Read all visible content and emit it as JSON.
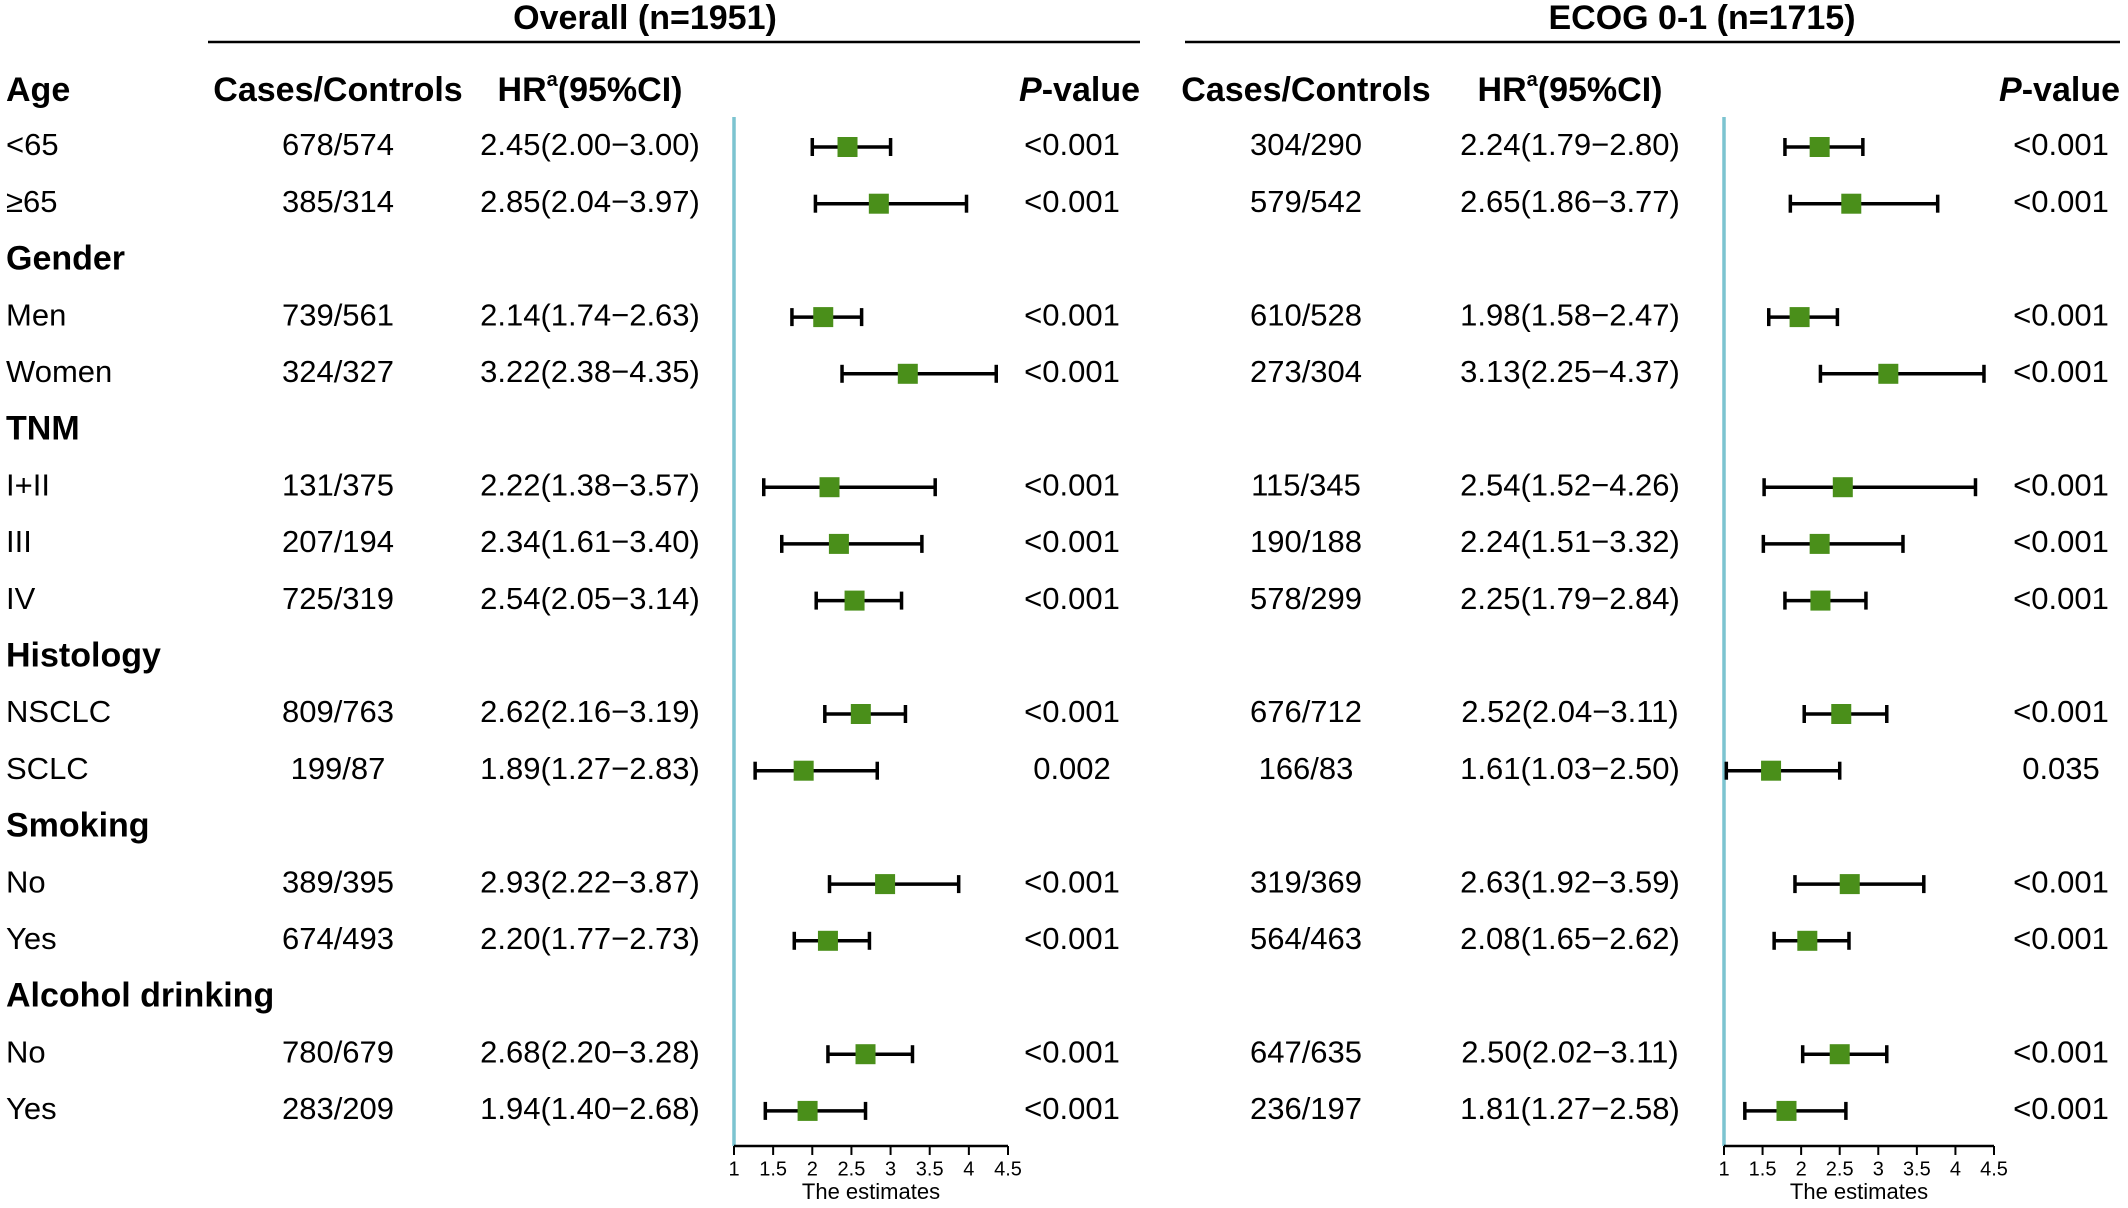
{
  "chart_data": {
    "type": "forest",
    "panels": [
      {
        "id": "overall",
        "title": "Overall (n=1951)"
      },
      {
        "id": "ecog",
        "title": "ECOG 0-1 (n=1715)"
      }
    ],
    "columns": {
      "group": "Age",
      "cases_controls": "Cases/Controls",
      "hr_prefix": "HR",
      "hr_sup": "a",
      "hr_suffix": "(95%CI)",
      "p_italic": "P",
      "p_suffix": "-value"
    },
    "x_axis": {
      "label": "The estimates",
      "min": 1,
      "max": 4.5,
      "ticks": [
        1,
        1.5,
        2,
        2.5,
        3,
        3.5,
        4,
        4.5
      ],
      "tick_labels": [
        "1",
        "1.5",
        "2",
        "2.5",
        "3",
        "3.5",
        "4",
        "4.5"
      ],
      "reference_line": 1
    },
    "rows": [
      {
        "kind": "data",
        "label": "<65",
        "overall": {
          "cc": "678/574",
          "hr": 2.45,
          "lo": 2.0,
          "hi": 3.0,
          "hr_text": "2.45(2.00−3.00)",
          "p": "<0.001"
        },
        "ecog": {
          "cc": "304/290",
          "hr": 2.24,
          "lo": 1.79,
          "hi": 2.8,
          "hr_text": "2.24(1.79−2.80)",
          "p": "<0.001"
        }
      },
      {
        "kind": "data",
        "label": "≥65",
        "overall": {
          "cc": "385/314",
          "hr": 2.85,
          "lo": 2.04,
          "hi": 3.97,
          "hr_text": "2.85(2.04−3.97)",
          "p": "<0.001"
        },
        "ecog": {
          "cc": "579/542",
          "hr": 2.65,
          "lo": 1.86,
          "hi": 3.77,
          "hr_text": "2.65(1.86−3.77)",
          "p": "<0.001"
        }
      },
      {
        "kind": "section",
        "label": "Gender"
      },
      {
        "kind": "data",
        "label": "Men",
        "overall": {
          "cc": "739/561",
          "hr": 2.14,
          "lo": 1.74,
          "hi": 2.63,
          "hr_text": "2.14(1.74−2.63)",
          "p": "<0.001"
        },
        "ecog": {
          "cc": "610/528",
          "hr": 1.98,
          "lo": 1.58,
          "hi": 2.47,
          "hr_text": "1.98(1.58−2.47)",
          "p": "<0.001"
        }
      },
      {
        "kind": "data",
        "label": "Women",
        "overall": {
          "cc": "324/327",
          "hr": 3.22,
          "lo": 2.38,
          "hi": 4.35,
          "hr_text": "3.22(2.38−4.35)",
          "p": "<0.001"
        },
        "ecog": {
          "cc": "273/304",
          "hr": 3.13,
          "lo": 2.25,
          "hi": 4.37,
          "hr_text": "3.13(2.25−4.37)",
          "p": "<0.001"
        }
      },
      {
        "kind": "section",
        "label": "TNM"
      },
      {
        "kind": "data",
        "label": "I+II",
        "overall": {
          "cc": "131/375",
          "hr": 2.22,
          "lo": 1.38,
          "hi": 3.57,
          "hr_text": "2.22(1.38−3.57)",
          "p": "<0.001"
        },
        "ecog": {
          "cc": "115/345",
          "hr": 2.54,
          "lo": 1.52,
          "hi": 4.26,
          "hr_text": "2.54(1.52−4.26)",
          "p": "<0.001"
        }
      },
      {
        "kind": "data",
        "label": "III",
        "overall": {
          "cc": "207/194",
          "hr": 2.34,
          "lo": 1.61,
          "hi": 3.4,
          "hr_text": "2.34(1.61−3.40)",
          "p": "<0.001"
        },
        "ecog": {
          "cc": "190/188",
          "hr": 2.24,
          "lo": 1.51,
          "hi": 3.32,
          "hr_text": "2.24(1.51−3.32)",
          "p": "<0.001"
        }
      },
      {
        "kind": "data",
        "label": "IV",
        "overall": {
          "cc": "725/319",
          "hr": 2.54,
          "lo": 2.05,
          "hi": 3.14,
          "hr_text": "2.54(2.05−3.14)",
          "p": "<0.001"
        },
        "ecog": {
          "cc": "578/299",
          "hr": 2.25,
          "lo": 1.79,
          "hi": 2.84,
          "hr_text": "2.25(1.79−2.84)",
          "p": "<0.001"
        }
      },
      {
        "kind": "section",
        "label": "Histology"
      },
      {
        "kind": "data",
        "label": "NSCLC",
        "overall": {
          "cc": "809/763",
          "hr": 2.62,
          "lo": 2.16,
          "hi": 3.19,
          "hr_text": "2.62(2.16−3.19)",
          "p": "<0.001"
        },
        "ecog": {
          "cc": "676/712",
          "hr": 2.52,
          "lo": 2.04,
          "hi": 3.11,
          "hr_text": "2.52(2.04−3.11)",
          "p": "<0.001"
        }
      },
      {
        "kind": "data",
        "label": "SCLC",
        "overall": {
          "cc": "199/87",
          "hr": 1.89,
          "lo": 1.27,
          "hi": 2.83,
          "hr_text": "1.89(1.27−2.83)",
          "p": "0.002"
        },
        "ecog": {
          "cc": "166/83",
          "hr": 1.61,
          "lo": 1.03,
          "hi": 2.5,
          "hr_text": "1.61(1.03−2.50)",
          "p": "0.035"
        }
      },
      {
        "kind": "section",
        "label": "Smoking"
      },
      {
        "kind": "data",
        "label": "No",
        "overall": {
          "cc": "389/395",
          "hr": 2.93,
          "lo": 2.22,
          "hi": 3.87,
          "hr_text": "2.93(2.22−3.87)",
          "p": "<0.001"
        },
        "ecog": {
          "cc": "319/369",
          "hr": 2.63,
          "lo": 1.92,
          "hi": 3.59,
          "hr_text": "2.63(1.92−3.59)",
          "p": "<0.001"
        }
      },
      {
        "kind": "data",
        "label": "Yes",
        "overall": {
          "cc": "674/493",
          "hr": 2.2,
          "lo": 1.77,
          "hi": 2.73,
          "hr_text": "2.20(1.77−2.73)",
          "p": "<0.001"
        },
        "ecog": {
          "cc": "564/463",
          "hr": 2.08,
          "lo": 1.65,
          "hi": 2.62,
          "hr_text": "2.08(1.65−2.62)",
          "p": "<0.001"
        }
      },
      {
        "kind": "section",
        "label": "Alcohol drinking"
      },
      {
        "kind": "data",
        "label": "No",
        "overall": {
          "cc": "780/679",
          "hr": 2.68,
          "lo": 2.2,
          "hi": 3.28,
          "hr_text": "2.68(2.20−3.28)",
          "p": "<0.001"
        },
        "ecog": {
          "cc": "647/635",
          "hr": 2.5,
          "lo": 2.02,
          "hi": 3.11,
          "hr_text": "2.50(2.02−3.11)",
          "p": "<0.001"
        }
      },
      {
        "kind": "data",
        "label": "Yes",
        "overall": {
          "cc": "283/209",
          "hr": 1.94,
          "lo": 1.4,
          "hi": 2.68,
          "hr_text": "1.94(1.40−2.68)",
          "p": "<0.001"
        },
        "ecog": {
          "cc": "236/197",
          "hr": 1.81,
          "lo": 1.27,
          "hi": 2.58,
          "hr_text": "1.81(1.27−2.58)",
          "p": "<0.001"
        }
      }
    ],
    "colors": {
      "marker": "#4a8f1a",
      "reference_line": "#7cc4d0",
      "whisker": "#000000"
    }
  }
}
